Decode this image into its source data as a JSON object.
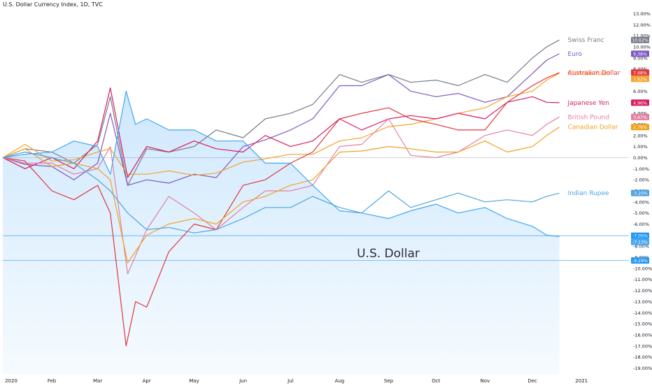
{
  "header": {
    "symbol_line": "U.S. Dollar Currency Index, 1D, TVC"
  },
  "colors": {
    "background": "#ffffff",
    "axis_text": "#131722",
    "zero_line": "#d1d4dc",
    "usd_fill": "#2196f3",
    "usd_line": "#42a5f5",
    "usd_label": "#2a2e39"
  },
  "chart_data": {
    "type": "line",
    "title": "U.S. Dollar Currency Index, 1D, TVC",
    "x_ticks": [
      "2020",
      "Feb",
      "Mar",
      "Apr",
      "May",
      "Jun",
      "Jul",
      "Aug",
      "Sep",
      "Oct",
      "Nov",
      "Dec",
      "2021"
    ],
    "y_ticks": [
      13,
      12,
      11,
      10,
      9,
      8,
      7,
      6,
      5,
      4,
      3,
      2,
      1,
      0,
      -1,
      -2,
      -3,
      -4,
      -5,
      -6,
      -7,
      -8,
      -9,
      -10,
      -11,
      -12,
      -13,
      -14,
      -15,
      -16,
      -17,
      -18,
      -19
    ],
    "y_tick_labels": [
      "13.00%",
      "12.00%",
      "11.00%",
      "10.00%",
      "9.00%",
      "8.00%",
      "7.00%",
      "6.00%",
      "5.00%",
      "4.00%",
      "3.00%",
      "2.00%",
      "1.00%",
      "0.00%",
      "-1.00%",
      "-2.00%",
      "-3.00%",
      "-4.00%",
      "-5.00%",
      "-6.00%",
      "-7.00%",
      "-8.00%",
      "-9.00%",
      "-10.00%",
      "-11.00%",
      "-12.00%",
      "-13.00%",
      "-14.00%",
      "-15.00%",
      "-16.00%",
      "-17.00%",
      "-18.00%",
      "-19.00%"
    ],
    "ylim": [
      -19.6,
      13.6
    ],
    "y_unit": "%",
    "xlim": [
      "2020-01-01",
      "2021-01-31"
    ],
    "background_series": "U.S. Dollar",
    "background_label": "U.S. Dollar",
    "series": [
      {
        "name": "Swiss Franc",
        "color": "#787b86",
        "last_label": "10.62%",
        "points": [
          [
            "2020-01-01",
            0
          ],
          [
            "2020-01-15",
            0.8
          ],
          [
            "2020-02-01",
            0.5
          ],
          [
            "2020-02-15",
            -0.5
          ],
          [
            "2020-03-01",
            1.2
          ],
          [
            "2020-03-09",
            5.5
          ],
          [
            "2020-03-20",
            -2.5
          ],
          [
            "2020-04-01",
            0.8
          ],
          [
            "2020-04-15",
            0.5
          ],
          [
            "2020-05-01",
            1.0
          ],
          [
            "2020-05-15",
            2.5
          ],
          [
            "2020-06-01",
            1.8
          ],
          [
            "2020-06-15",
            3.5
          ],
          [
            "2020-07-01",
            4.0
          ],
          [
            "2020-07-15",
            4.8
          ],
          [
            "2020-08-01",
            7.5
          ],
          [
            "2020-08-15",
            6.8
          ],
          [
            "2020-09-01",
            7.5
          ],
          [
            "2020-09-15",
            6.8
          ],
          [
            "2020-10-01",
            7.0
          ],
          [
            "2020-10-15",
            6.5
          ],
          [
            "2020-11-01",
            7.5
          ],
          [
            "2020-11-15",
            6.8
          ],
          [
            "2020-12-01",
            9.0
          ],
          [
            "2020-12-10",
            10.0
          ],
          [
            "2020-12-18",
            10.62
          ]
        ]
      },
      {
        "name": "Euro",
        "color": "#7e57c2",
        "last_label": "9.38%",
        "points": [
          [
            "2020-01-01",
            0
          ],
          [
            "2020-01-15",
            -0.6
          ],
          [
            "2020-02-01",
            -0.8
          ],
          [
            "2020-02-15",
            -2.0
          ],
          [
            "2020-03-01",
            -0.5
          ],
          [
            "2020-03-09",
            4.0
          ],
          [
            "2020-03-20",
            -2.5
          ],
          [
            "2020-04-01",
            -2.0
          ],
          [
            "2020-04-15",
            -2.3
          ],
          [
            "2020-05-01",
            -1.5
          ],
          [
            "2020-05-15",
            -1.8
          ],
          [
            "2020-06-01",
            1.0
          ],
          [
            "2020-06-15",
            1.6
          ],
          [
            "2020-07-01",
            2.5
          ],
          [
            "2020-07-15",
            3.5
          ],
          [
            "2020-08-01",
            6.5
          ],
          [
            "2020-08-15",
            6.5
          ],
          [
            "2020-09-01",
            7.5
          ],
          [
            "2020-09-15",
            6.0
          ],
          [
            "2020-10-01",
            5.5
          ],
          [
            "2020-10-15",
            5.8
          ],
          [
            "2020-11-01",
            5.0
          ],
          [
            "2020-11-15",
            5.5
          ],
          [
            "2020-12-01",
            7.6
          ],
          [
            "2020-12-10",
            8.8
          ],
          [
            "2020-12-18",
            9.38
          ]
        ]
      },
      {
        "name": "Chinese Yuan",
        "color": "#f6a12d",
        "last_label": "7.62%",
        "points": [
          [
            "2020-01-01",
            0
          ],
          [
            "2020-01-15",
            1.2
          ],
          [
            "2020-02-01",
            -0.3
          ],
          [
            "2020-02-15",
            -0.2
          ],
          [
            "2020-03-01",
            0.5
          ],
          [
            "2020-03-09",
            0.8
          ],
          [
            "2020-03-20",
            -1.5
          ],
          [
            "2020-04-01",
            -1.5
          ],
          [
            "2020-04-15",
            -1.2
          ],
          [
            "2020-05-01",
            -1.6
          ],
          [
            "2020-05-15",
            -1.4
          ],
          [
            "2020-06-01",
            -0.4
          ],
          [
            "2020-06-15",
            -0.1
          ],
          [
            "2020-07-01",
            0.3
          ],
          [
            "2020-07-15",
            0.3
          ],
          [
            "2020-08-01",
            1.5
          ],
          [
            "2020-08-15",
            1.8
          ],
          [
            "2020-09-01",
            2.8
          ],
          [
            "2020-09-15",
            3.0
          ],
          [
            "2020-10-01",
            3.5
          ],
          [
            "2020-10-15",
            4.0
          ],
          [
            "2020-11-01",
            4.5
          ],
          [
            "2020-11-15",
            5.5
          ],
          [
            "2020-12-01",
            6.0
          ],
          [
            "2020-12-10",
            7.0
          ],
          [
            "2020-12-18",
            7.62
          ]
        ]
      },
      {
        "name": "Australian Dollar",
        "color": "#e0363a",
        "last_label": "7.68%",
        "points": [
          [
            "2020-01-01",
            0
          ],
          [
            "2020-01-15",
            -0.3
          ],
          [
            "2020-02-01",
            -3.0
          ],
          [
            "2020-02-15",
            -3.8
          ],
          [
            "2020-03-01",
            -2.5
          ],
          [
            "2020-03-09",
            -5.0
          ],
          [
            "2020-03-19",
            -17.0
          ],
          [
            "2020-03-25",
            -13.0
          ],
          [
            "2020-04-01",
            -13.5
          ],
          [
            "2020-04-15",
            -8.5
          ],
          [
            "2020-05-01",
            -6.0
          ],
          [
            "2020-05-15",
            -6.5
          ],
          [
            "2020-06-01",
            -2.5
          ],
          [
            "2020-06-15",
            -2.0
          ],
          [
            "2020-07-01",
            -0.5
          ],
          [
            "2020-07-15",
            0.5
          ],
          [
            "2020-08-01",
            3.5
          ],
          [
            "2020-08-15",
            4.0
          ],
          [
            "2020-09-01",
            4.5
          ],
          [
            "2020-09-15",
            3.5
          ],
          [
            "2020-10-01",
            3.0
          ],
          [
            "2020-10-15",
            2.5
          ],
          [
            "2020-11-01",
            2.5
          ],
          [
            "2020-11-15",
            5.0
          ],
          [
            "2020-12-01",
            6.5
          ],
          [
            "2020-12-10",
            7.2
          ],
          [
            "2020-12-18",
            7.68
          ]
        ]
      },
      {
        "name": "Japanese Yen",
        "color": "#d81b60",
        "last_label": "4.96%",
        "points": [
          [
            "2020-01-01",
            0
          ],
          [
            "2020-01-15",
            -1.0
          ],
          [
            "2020-02-01",
            0.0
          ],
          [
            "2020-02-15",
            -1.0
          ],
          [
            "2020-03-01",
            1.5
          ],
          [
            "2020-03-09",
            6.3
          ],
          [
            "2020-03-20",
            -1.8
          ],
          [
            "2020-04-01",
            1.0
          ],
          [
            "2020-04-15",
            0.5
          ],
          [
            "2020-05-01",
            1.5
          ],
          [
            "2020-05-15",
            0.8
          ],
          [
            "2020-06-01",
            0.5
          ],
          [
            "2020-06-15",
            2.0
          ],
          [
            "2020-07-01",
            1.0
          ],
          [
            "2020-07-15",
            1.5
          ],
          [
            "2020-08-01",
            3.5
          ],
          [
            "2020-08-15",
            2.5
          ],
          [
            "2020-09-01",
            3.5
          ],
          [
            "2020-09-15",
            3.8
          ],
          [
            "2020-10-01",
            3.5
          ],
          [
            "2020-10-15",
            4.0
          ],
          [
            "2020-11-01",
            3.5
          ],
          [
            "2020-11-15",
            5.0
          ],
          [
            "2020-12-01",
            5.5
          ],
          [
            "2020-12-10",
            5.0
          ],
          [
            "2020-12-18",
            4.96
          ]
        ]
      },
      {
        "name": "British Pound",
        "color": "#e57fa0",
        "last_label": "3.67%",
        "points": [
          [
            "2020-01-01",
            0
          ],
          [
            "2020-01-15",
            -0.5
          ],
          [
            "2020-02-01",
            -0.5
          ],
          [
            "2020-02-15",
            -1.5
          ],
          [
            "2020-03-01",
            -1.0
          ],
          [
            "2020-03-09",
            1.0
          ],
          [
            "2020-03-20",
            -10.5
          ],
          [
            "2020-04-01",
            -6.5
          ],
          [
            "2020-04-15",
            -3.5
          ],
          [
            "2020-05-01",
            -5.0
          ],
          [
            "2020-05-15",
            -6.5
          ],
          [
            "2020-06-01",
            -4.5
          ],
          [
            "2020-06-15",
            -3.0
          ],
          [
            "2020-07-01",
            -3.0
          ],
          [
            "2020-07-15",
            -2.5
          ],
          [
            "2020-08-01",
            1.0
          ],
          [
            "2020-08-15",
            1.2
          ],
          [
            "2020-09-01",
            3.5
          ],
          [
            "2020-09-15",
            0.2
          ],
          [
            "2020-10-01",
            0.0
          ],
          [
            "2020-10-15",
            0.5
          ],
          [
            "2020-11-01",
            2.0
          ],
          [
            "2020-11-15",
            2.5
          ],
          [
            "2020-12-01",
            2.0
          ],
          [
            "2020-12-10",
            3.0
          ],
          [
            "2020-12-18",
            3.67
          ]
        ]
      },
      {
        "name": "Canadian Dollar",
        "color": "#f0a020",
        "last_label": "2.76%",
        "points": [
          [
            "2020-01-01",
            0
          ],
          [
            "2020-01-15",
            0.8
          ],
          [
            "2020-02-01",
            -0.8
          ],
          [
            "2020-02-15",
            -0.5
          ],
          [
            "2020-03-01",
            -1.0
          ],
          [
            "2020-03-09",
            -2.0
          ],
          [
            "2020-03-20",
            -9.5
          ],
          [
            "2020-04-01",
            -7.0
          ],
          [
            "2020-04-15",
            -6.0
          ],
          [
            "2020-05-01",
            -5.5
          ],
          [
            "2020-05-15",
            -6.0
          ],
          [
            "2020-06-01",
            -4.0
          ],
          [
            "2020-06-15",
            -3.5
          ],
          [
            "2020-07-01",
            -2.5
          ],
          [
            "2020-07-15",
            -2.0
          ],
          [
            "2020-08-01",
            0.5
          ],
          [
            "2020-08-15",
            0.6
          ],
          [
            "2020-09-01",
            1.0
          ],
          [
            "2020-09-15",
            0.8
          ],
          [
            "2020-10-01",
            0.5
          ],
          [
            "2020-10-15",
            0.5
          ],
          [
            "2020-11-01",
            1.5
          ],
          [
            "2020-11-15",
            0.5
          ],
          [
            "2020-12-01",
            1.0
          ],
          [
            "2020-12-10",
            2.0
          ],
          [
            "2020-12-18",
            2.76
          ]
        ]
      },
      {
        "name": "Indian Rupee",
        "color": "#4fa3e0",
        "last_label": "-3.20%",
        "points": [
          [
            "2020-01-01",
            0
          ],
          [
            "2020-01-15",
            0.5
          ],
          [
            "2020-02-01",
            0.0
          ],
          [
            "2020-02-15",
            -0.5
          ],
          [
            "2020-03-01",
            -2.0
          ],
          [
            "2020-03-09",
            -3.0
          ],
          [
            "2020-03-20",
            -5.0
          ],
          [
            "2020-04-01",
            -6.5
          ],
          [
            "2020-04-15",
            -6.3
          ],
          [
            "2020-05-01",
            -6.8
          ],
          [
            "2020-05-15",
            -6.5
          ],
          [
            "2020-06-01",
            -5.5
          ],
          [
            "2020-06-15",
            -4.5
          ],
          [
            "2020-07-01",
            -4.5
          ],
          [
            "2020-07-15",
            -3.5
          ],
          [
            "2020-08-01",
            -4.5
          ],
          [
            "2020-08-15",
            -5.0
          ],
          [
            "2020-09-01",
            -3.0
          ],
          [
            "2020-09-15",
            -4.5
          ],
          [
            "2020-10-01",
            -3.8
          ],
          [
            "2020-10-15",
            -3.2
          ],
          [
            "2020-11-01",
            -4.0
          ],
          [
            "2020-11-15",
            -3.8
          ],
          [
            "2020-12-01",
            -4.0
          ],
          [
            "2020-12-10",
            -3.5
          ],
          [
            "2020-12-18",
            -3.2
          ]
        ]
      },
      {
        "name": "U.S. Dollar",
        "color": "#42a5f5",
        "last_label": "-7.13%",
        "points": [
          [
            "2020-01-01",
            0
          ],
          [
            "2020-01-15",
            0.3
          ],
          [
            "2020-02-01",
            0.5
          ],
          [
            "2020-02-15",
            1.5
          ],
          [
            "2020-03-01",
            1.0
          ],
          [
            "2020-03-09",
            -1.5
          ],
          [
            "2020-03-19",
            6.0
          ],
          [
            "2020-03-25",
            3.0
          ],
          [
            "2020-04-01",
            3.5
          ],
          [
            "2020-04-15",
            2.5
          ],
          [
            "2020-05-01",
            2.5
          ],
          [
            "2020-05-15",
            1.5
          ],
          [
            "2020-06-01",
            1.5
          ],
          [
            "2020-06-15",
            -0.5
          ],
          [
            "2020-07-01",
            -0.5
          ],
          [
            "2020-07-15",
            -2.5
          ],
          [
            "2020-08-01",
            -4.8
          ],
          [
            "2020-08-15",
            -5.0
          ],
          [
            "2020-09-01",
            -5.5
          ],
          [
            "2020-09-15",
            -4.8
          ],
          [
            "2020-10-01",
            -4.2
          ],
          [
            "2020-10-15",
            -5.0
          ],
          [
            "2020-11-01",
            -4.5
          ],
          [
            "2020-11-15",
            -5.5
          ],
          [
            "2020-12-01",
            -6.2
          ],
          [
            "2020-12-10",
            -7.0
          ],
          [
            "2020-12-18",
            -7.13
          ]
        ]
      }
    ],
    "extra_price_labels": [
      {
        "value": -7.05,
        "label": "-7.05%",
        "color": "#2196f3"
      },
      {
        "value": -9.29,
        "label": "-9.29%",
        "color": "#2196f3"
      }
    ],
    "horizontal_lines": [
      -7.05,
      -9.29
    ]
  }
}
